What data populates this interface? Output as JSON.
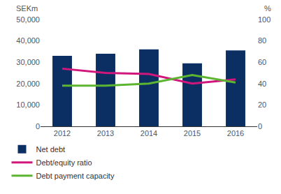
{
  "chart_data": {
    "type": "bar",
    "y_label": "SEKm",
    "y2_label": "%",
    "categories": [
      "2012",
      "2013",
      "2014",
      "2015",
      "2016"
    ],
    "series": [
      {
        "name": "Net debt",
        "type": "bar",
        "color": "#0b2f63",
        "values": [
          33000,
          34000,
          36000,
          29500,
          35500
        ]
      },
      {
        "name": "Debt/equity ratio",
        "type": "line",
        "axis": "y2",
        "color": "#d1177c",
        "values": [
          54,
          50,
          49,
          40,
          44
        ]
      },
      {
        "name": "Debt payment capacity",
        "type": "line",
        "axis": "y2",
        "color": "#5cb531",
        "values": [
          38,
          38,
          40,
          48,
          41
        ]
      }
    ],
    "ylim": [
      0,
      50000
    ],
    "yticks": [
      0,
      {
        "value": 10000,
        "label": "10,000"
      },
      {
        "value": 20000,
        "label": "20,000"
      },
      {
        "value": 30000,
        "label": "30,000"
      },
      {
        "value": 40000,
        "label": "40,000"
      },
      {
        "value": 50000,
        "label": "50,000"
      }
    ],
    "y2lim": [
      0,
      100
    ],
    "y2ticks": [
      0,
      20,
      40,
      60,
      80,
      100
    ],
    "grid": false,
    "legend": "bottom left"
  }
}
